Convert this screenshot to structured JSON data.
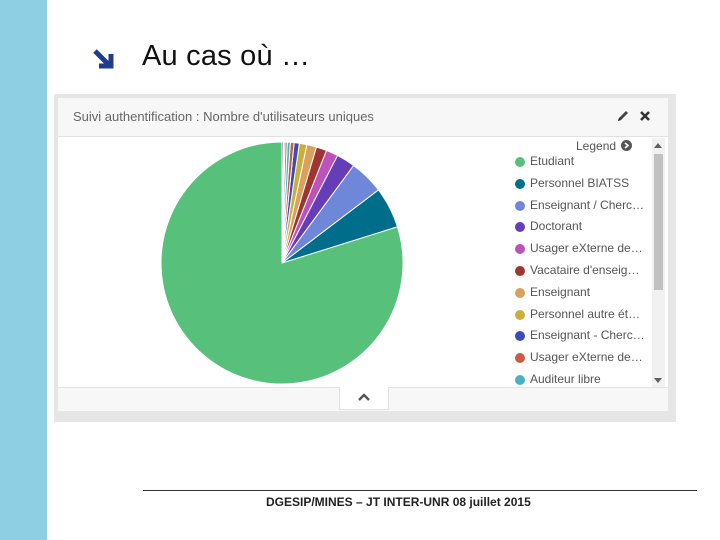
{
  "slide": {
    "title": "Au cas où …",
    "arrow_icon": "arrow-down-right-icon",
    "footer": "DGESIP/MINES – JT INTER-UNR 08 juillet 2015"
  },
  "widget": {
    "title": "Suivi authentification : Nombre d'utilisateurs uniques",
    "legend_title": "Legend",
    "tools": [
      "edit-icon",
      "close-icon"
    ],
    "legend": [
      {
        "label": "Etudiant",
        "color": "#57c17b"
      },
      {
        "label": "Personnel BIATSS",
        "color": "#006e8a"
      },
      {
        "label": "Enseignant / Cherc…",
        "color": "#6f87d8"
      },
      {
        "label": "Doctorant",
        "color": "#663db8"
      },
      {
        "label": "Usager eXterne de…",
        "color": "#bc52bc"
      },
      {
        "label": "Vacataire d'enseig…",
        "color": "#9e3533"
      },
      {
        "label": "Enseignant",
        "color": "#daa05d"
      },
      {
        "label": "Personnel autre ét…",
        "color": "#c9b03b"
      },
      {
        "label": "Enseignant - Cherc…",
        "color": "#3d4ab8"
      },
      {
        "label": "Usager eXterne de…",
        "color": "#cc5b46"
      },
      {
        "label": "Auditeur libre",
        "color": "#4ab1c0"
      }
    ]
  },
  "chart_data": {
    "type": "pie",
    "categories": [
      "Etudiant",
      "Personnel BIATSS",
      "Enseignant / Cherc…",
      "Doctorant",
      "Usager eXterne de…",
      "Vacataire d'enseig…",
      "Enseignant",
      "Personnel autre ét…",
      "Enseignant - Cherc…",
      "Usager eXterne de…",
      "Auditeur libre",
      "",
      "",
      ""
    ],
    "values": [
      80.0,
      5.5,
      4.6,
      2.5,
      1.6,
      1.4,
      1.3,
      1.0,
      0.7,
      0.5,
      0.4,
      0.3,
      0.2,
      0.2
    ],
    "colors": [
      "#57c17b",
      "#006e8a",
      "#6f87d8",
      "#663db8",
      "#bc52bc",
      "#9e3533",
      "#daa05d",
      "#c9b03b",
      "#3d4ab8",
      "#cc5b46",
      "#4ab1c0",
      "#8a8a8a",
      "#b8b8b8",
      "#555555"
    ],
    "legend_position": "right"
  }
}
